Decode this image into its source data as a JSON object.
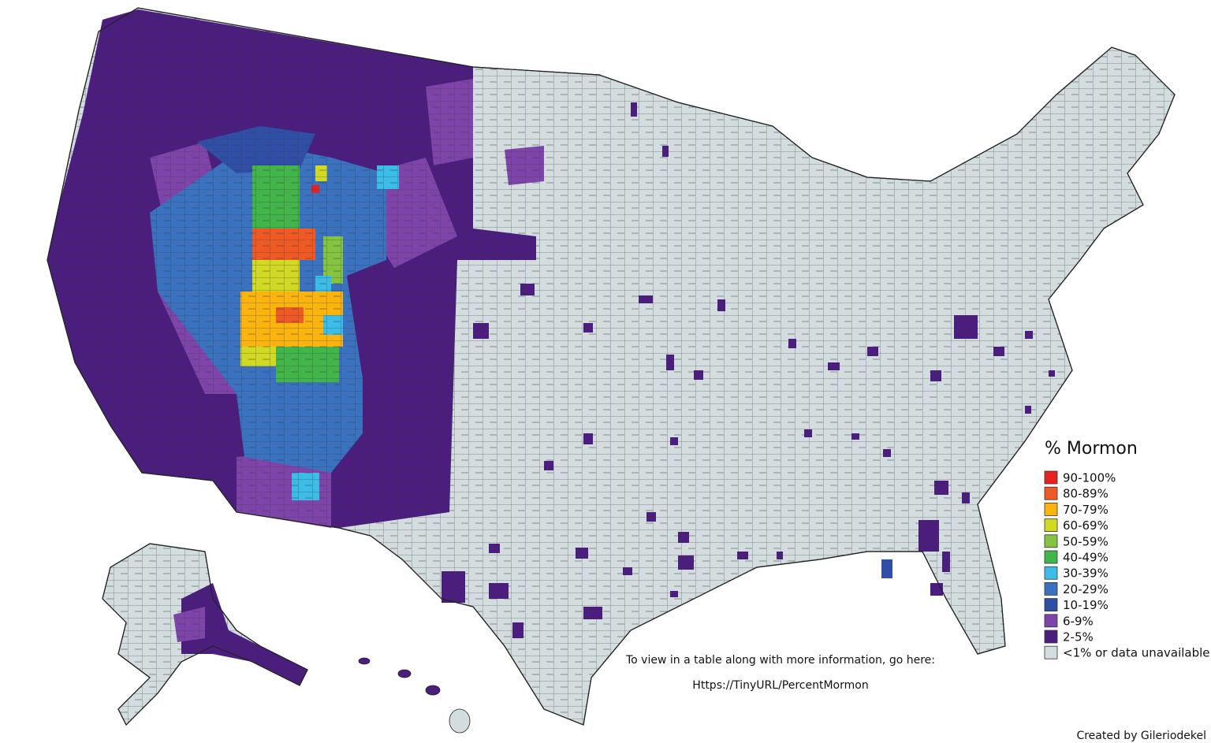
{
  "legend": {
    "title": "% Mormon",
    "items": [
      {
        "label": "90-100%",
        "color": "#e8231f"
      },
      {
        "label": "80-89%",
        "color": "#ef5a24"
      },
      {
        "label": "70-79%",
        "color": "#fbb40e"
      },
      {
        "label": "60-69%",
        "color": "#d2d923"
      },
      {
        "label": "50-59%",
        "color": "#84c441"
      },
      {
        "label": "40-49%",
        "color": "#42b54a"
      },
      {
        "label": "30-39%",
        "color": "#3bbde8"
      },
      {
        "label": "20-29%",
        "color": "#3a72bf"
      },
      {
        "label": "10-19%",
        "color": "#2f4fa6"
      },
      {
        "label": "6-9%",
        "color": "#7e44aa"
      },
      {
        "label": "2-5%",
        "color": "#4a1d7f"
      },
      {
        "label": "<1% or data unavailable",
        "color": "#d3dde0"
      }
    ]
  },
  "note": {
    "text": "To view in a table along with more information, go here:",
    "link": "Https://TinyURL/PercentMormon"
  },
  "credit": "Created by Gileriodekel"
}
